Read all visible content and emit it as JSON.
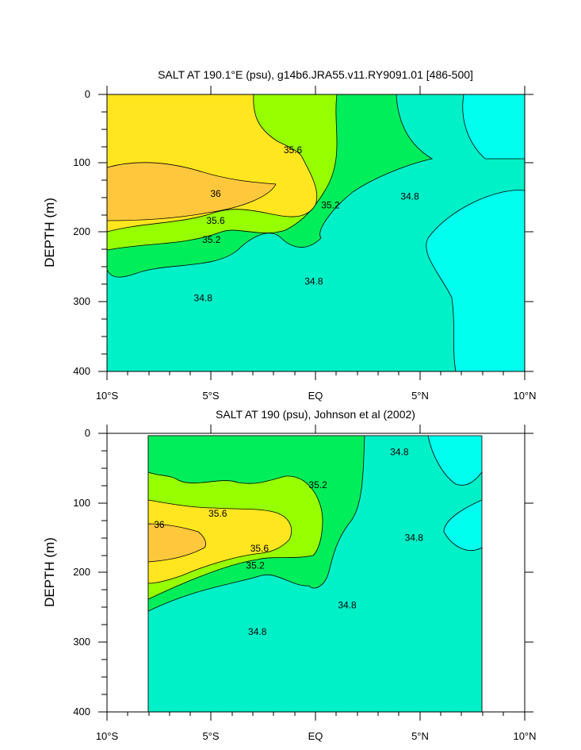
{
  "colors": {
    "lt_34_8": "#00ffee",
    "c34_8_35_2": "#00f0c8",
    "c35_2_35_4": "#00ee5a",
    "c35_4_35_6": "#96ff00",
    "c35_6_36": "#ffe61e",
    "gt_36": "#ffc83c"
  },
  "chart_data": [
    {
      "type": "heatmap",
      "title": "SALT AT 190.1°E (psu), g14b6.JRA55.v11.RY9091.01 [486-500]",
      "ylabel": "DEPTH (m)",
      "xlabel": "",
      "xlim": [
        -10,
        10
      ],
      "ylim": [
        400,
        0
      ],
      "xticks": [
        {
          "value": -10,
          "label": "10°S"
        },
        {
          "value": -5,
          "label": "5°S"
        },
        {
          "value": 0,
          "label": "EQ"
        },
        {
          "value": 5,
          "label": "5°N"
        },
        {
          "value": 10,
          "label": "10°N"
        }
      ],
      "yticks": [
        0,
        100,
        200,
        300,
        400
      ],
      "contour_levels": [
        34.8,
        35.2,
        35.4,
        35.6,
        36
      ],
      "contour_labels": [
        {
          "text": "35.6",
          "x": -1.1,
          "y": 80
        },
        {
          "text": "36",
          "x": -4.8,
          "y": 143
        },
        {
          "text": "35.6",
          "x": -4.8,
          "y": 182
        },
        {
          "text": "35.2",
          "x": 0.7,
          "y": 160
        },
        {
          "text": "34.8",
          "x": 4.5,
          "y": 147
        },
        {
          "text": "35.2",
          "x": -5.0,
          "y": 210
        },
        {
          "text": "34.8",
          "x": -0.1,
          "y": 270
        },
        {
          "text": "34.8",
          "x": -5.4,
          "y": 294
        }
      ]
    },
    {
      "type": "heatmap",
      "title": "SALT AT 190 (psu), Johnson et al (2002)",
      "ylabel": "DEPTH (m)",
      "xlabel": "",
      "xlim": [
        -10,
        10
      ],
      "ylim": [
        400,
        0
      ],
      "data_xrange": [
        -8,
        8
      ],
      "xticks": [
        {
          "value": -10,
          "label": "10°S"
        },
        {
          "value": -5,
          "label": "5°S"
        },
        {
          "value": 0,
          "label": "EQ"
        },
        {
          "value": 5,
          "label": "5°N"
        },
        {
          "value": 10,
          "label": "10°N"
        }
      ],
      "yticks": [
        0,
        100,
        200,
        300,
        400
      ],
      "contour_levels": [
        34.8,
        35.2,
        35.4,
        35.6,
        36
      ],
      "contour_labels": [
        {
          "text": "35.6",
          "x": -4.7,
          "y": 115
        },
        {
          "text": "36",
          "x": -7.5,
          "y": 131
        },
        {
          "text": "35.6",
          "x": -2.7,
          "y": 165
        },
        {
          "text": "35.2",
          "x": -2.9,
          "y": 190
        },
        {
          "text": "35.2",
          "x": 0.1,
          "y": 74
        },
        {
          "text": "34.8",
          "x": 4.0,
          "y": 27
        },
        {
          "text": "34.8",
          "x": 4.7,
          "y": 150
        },
        {
          "text": "34.8",
          "x": 1.5,
          "y": 247
        },
        {
          "text": "34.8",
          "x": -2.8,
          "y": 285
        }
      ]
    }
  ]
}
